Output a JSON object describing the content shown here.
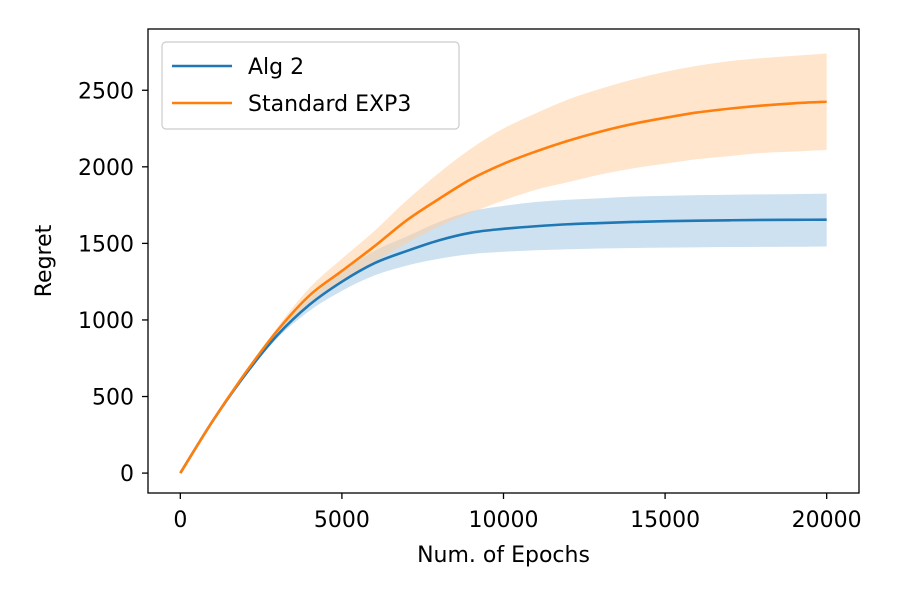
{
  "chart_data": {
    "type": "line",
    "title": "",
    "xlabel": "Num. of Epochs",
    "ylabel": "Regret",
    "xlim": [
      -1000,
      21000
    ],
    "ylim": [
      -130,
      2900
    ],
    "x_ticks": [
      0,
      5000,
      10000,
      15000,
      20000
    ],
    "x_tick_labels": [
      "0",
      "5000",
      "10000",
      "15000",
      "20000"
    ],
    "y_ticks": [
      0,
      500,
      1000,
      1500,
      2000,
      2500
    ],
    "y_tick_labels": [
      "0",
      "500",
      "1000",
      "1500",
      "2000",
      "2500"
    ],
    "grid": false,
    "legend_position": "top-left",
    "x": [
      0,
      1000,
      2000,
      3000,
      4000,
      5000,
      6000,
      7000,
      8000,
      9000,
      10000,
      11000,
      12000,
      13000,
      14000,
      15000,
      16000,
      17000,
      18000,
      19000,
      20000
    ],
    "series": [
      {
        "name": "Alg 2",
        "color": "#1f77b4",
        "band_color": "#a6c8e3",
        "values": [
          0,
          340,
          640,
          900,
          1100,
          1250,
          1370,
          1450,
          1520,
          1570,
          1595,
          1612,
          1625,
          1633,
          1640,
          1645,
          1648,
          1651,
          1653,
          1654,
          1655
        ],
        "lower": [
          0,
          340,
          635,
          880,
          1060,
          1190,
          1290,
          1355,
          1400,
          1430,
          1445,
          1455,
          1462,
          1467,
          1470,
          1472,
          1474,
          1476,
          1477,
          1478,
          1480
        ],
        "upper": [
          0,
          340,
          645,
          920,
          1140,
          1310,
          1450,
          1545,
          1640,
          1710,
          1745,
          1770,
          1785,
          1795,
          1805,
          1810,
          1815,
          1818,
          1820,
          1822,
          1825
        ]
      },
      {
        "name": "Standard EXP3",
        "color": "#ff7f0e",
        "band_color": "#ffcfa3",
        "values": [
          0,
          340,
          650,
          930,
          1160,
          1320,
          1480,
          1650,
          1790,
          1920,
          2020,
          2100,
          2170,
          2230,
          2280,
          2320,
          2355,
          2380,
          2400,
          2415,
          2425
        ],
        "lower": [
          0,
          340,
          645,
          910,
          1110,
          1250,
          1380,
          1500,
          1610,
          1700,
          1780,
          1850,
          1900,
          1950,
          1990,
          2020,
          2050,
          2070,
          2090,
          2100,
          2110
        ],
        "upper": [
          0,
          340,
          655,
          950,
          1210,
          1400,
          1580,
          1780,
          1960,
          2120,
          2250,
          2350,
          2440,
          2510,
          2570,
          2620,
          2660,
          2690,
          2710,
          2725,
          2740
        ]
      }
    ]
  }
}
